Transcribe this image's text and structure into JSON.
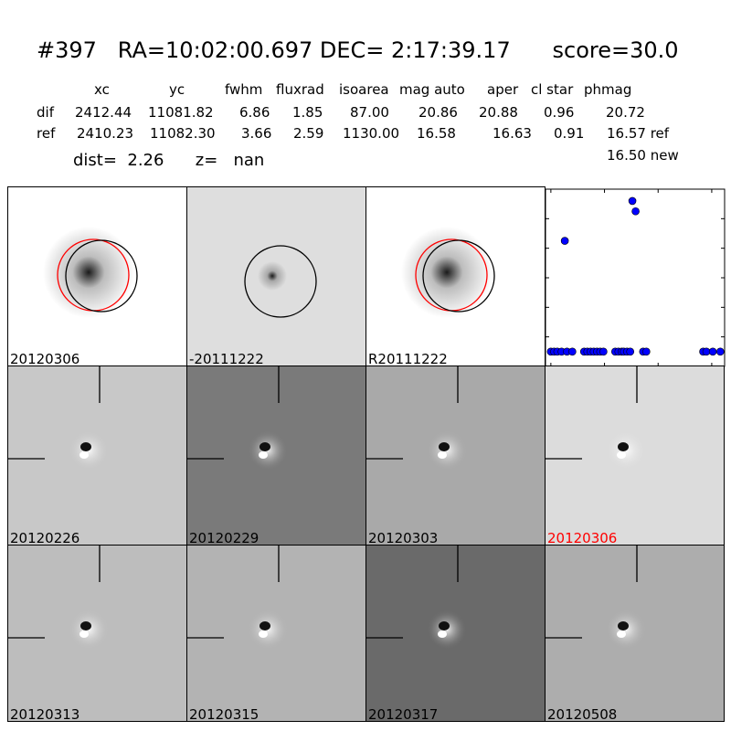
{
  "header": {
    "title": "#397   RA=10:02:00.697 DEC= 2:17:39.17      score=30.0",
    "columns": [
      "xc",
      "yc",
      "fwhm",
      "fluxrad",
      "isoarea",
      "mag auto",
      "aper",
      "cl star",
      "phmag"
    ],
    "rows": [
      {
        "label": "dif",
        "values": [
          "2412.44",
          "11081.82",
          "6.86",
          "1.85",
          "87.00",
          "20.86",
          "20.88",
          "0.96",
          "20.72"
        ]
      },
      {
        "label": "ref",
        "values": [
          "2410.23",
          "11082.30",
          "3.66",
          "2.59",
          "1130.00",
          "16.58",
          "16.63",
          "0.91",
          "16.57 ref"
        ]
      }
    ],
    "phmag_new": "16.50 new",
    "dist_line": "dist=  2.26      z=   nan"
  },
  "top_panels": [
    {
      "label": "20120306",
      "bg": "#ffffff",
      "core": "#1a1a1a",
      "halo": "#bdbdbd",
      "circle_red": true
    },
    {
      "label": "-20111222",
      "bg": "#dedede",
      "core": "#1a1a1a",
      "halo": "#a8a8a8",
      "circle_red": false
    },
    {
      "label": "R20111222",
      "bg": "#ffffff",
      "core": "#1a1a1a",
      "halo": "#bdbdbd",
      "circle_red": true
    }
  ],
  "stamps": [
    {
      "label": "20120226",
      "bg": "#c8c8c8",
      "label_color": "#000000"
    },
    {
      "label": "20120229",
      "bg": "#7a7a7a",
      "label_color": "#000000"
    },
    {
      "label": "20120303",
      "bg": "#a9a9a9",
      "label_color": "#000000"
    },
    {
      "label": "20120306",
      "bg": "#dcdcdc",
      "label_color": "#ff0000"
    },
    {
      "label": "20120313",
      "bg": "#bdbdbd",
      "label_color": "#000000"
    },
    {
      "label": "20120315",
      "bg": "#b3b3b3",
      "label_color": "#000000"
    },
    {
      "label": "20120317",
      "bg": "#6a6a6a",
      "label_color": "#000000"
    },
    {
      "label": "20120508",
      "bg": "#adadad",
      "label_color": "#000000"
    }
  ],
  "chart_data": {
    "type": "scatter",
    "xlim": [
      -5,
      162
    ],
    "ylim": [
      26,
      20
    ],
    "xticks": [
      "0",
      "50",
      "100",
      "150"
    ],
    "yticks": [
      "20",
      "21",
      "22",
      "23",
      "24",
      "25",
      "26"
    ],
    "color": "#0000ff",
    "points": [
      {
        "x": 0,
        "y": 25.5
      },
      {
        "x": 3,
        "y": 25.5
      },
      {
        "x": 6,
        "y": 25.5
      },
      {
        "x": 10,
        "y": 25.5
      },
      {
        "x": 13,
        "y": 21.75
      },
      {
        "x": 15,
        "y": 25.5
      },
      {
        "x": 20,
        "y": 25.5
      },
      {
        "x": 31,
        "y": 25.5
      },
      {
        "x": 34,
        "y": 25.5
      },
      {
        "x": 37,
        "y": 25.5
      },
      {
        "x": 40,
        "y": 25.5
      },
      {
        "x": 43,
        "y": 25.5
      },
      {
        "x": 46,
        "y": 25.5
      },
      {
        "x": 49,
        "y": 25.5
      },
      {
        "x": 60,
        "y": 25.5
      },
      {
        "x": 63,
        "y": 25.5
      },
      {
        "x": 66,
        "y": 25.5
      },
      {
        "x": 68,
        "y": 25.5
      },
      {
        "x": 71,
        "y": 25.5
      },
      {
        "x": 74,
        "y": 25.5
      },
      {
        "x": 76,
        "y": 20.4
      },
      {
        "x": 79,
        "y": 20.75
      },
      {
        "x": 86,
        "y": 25.5
      },
      {
        "x": 89,
        "y": 25.5
      },
      {
        "x": 142,
        "y": 25.5
      },
      {
        "x": 145,
        "y": 25.5
      },
      {
        "x": 151,
        "y": 25.5
      },
      {
        "x": 158,
        "y": 25.5
      }
    ]
  }
}
